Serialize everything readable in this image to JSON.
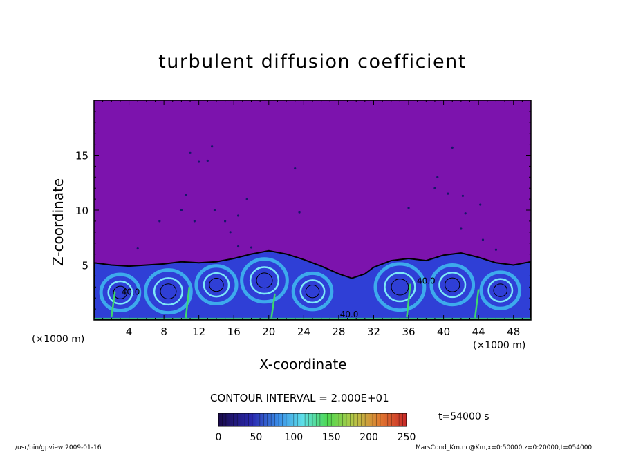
{
  "chart_data": {
    "type": "heatmap",
    "title": "turbulent diffusion coefficient",
    "xlabel": "X-coordinate",
    "ylabel": "Z-coordinate",
    "x_unit_label": "(×1000 m)",
    "xlim": [
      0,
      50
    ],
    "ylim": [
      0,
      20
    ],
    "x_ticks": [
      4,
      8,
      12,
      16,
      20,
      24,
      28,
      32,
      36,
      40,
      44,
      48
    ],
    "y_ticks": [
      5,
      10,
      15
    ],
    "contour_interval_label": "CONTOUR INTERVAL = 2.000E+01",
    "contour_labels": [
      "40.0",
      "40.0",
      "40.0"
    ],
    "colorbar": {
      "ticks": [
        0,
        50,
        100,
        150,
        200,
        250
      ],
      "range": [
        0,
        250
      ]
    },
    "time_label": "t=54000 s",
    "boundary_layer_top": [
      [
        0,
        5.2
      ],
      [
        2,
        5.0
      ],
      [
        4,
        4.9
      ],
      [
        6,
        5.0
      ],
      [
        8,
        5.1
      ],
      [
        10,
        5.3
      ],
      [
        12,
        5.2
      ],
      [
        14,
        5.3
      ],
      [
        16,
        5.6
      ],
      [
        18,
        6.0
      ],
      [
        20,
        6.3
      ],
      [
        22,
        6.0
      ],
      [
        24,
        5.5
      ],
      [
        26,
        4.9
      ],
      [
        28,
        4.2
      ],
      [
        29.5,
        3.8
      ],
      [
        31,
        4.2
      ],
      [
        32,
        4.8
      ],
      [
        34,
        5.4
      ],
      [
        36,
        5.6
      ],
      [
        38,
        5.4
      ],
      [
        40,
        5.9
      ],
      [
        42,
        6.1
      ],
      [
        44,
        5.7
      ],
      [
        46,
        5.2
      ],
      [
        48,
        5.0
      ],
      [
        50,
        5.3
      ]
    ],
    "background_value": 0
  },
  "colors": {
    "background_field": "#7c13ad",
    "turbulent_base": "#2f3fd6",
    "eddy_light": "#3fb6ee",
    "eddy_cyan": "#7de8f7",
    "eddy_green": "#3ed86e",
    "axes": "#000000"
  },
  "footer": {
    "left": "/usr/bin/gpview  2009-01-16",
    "right": "MarsCond_Km.nc@Km,x=0:50000,z=0:20000,t=054000"
  }
}
